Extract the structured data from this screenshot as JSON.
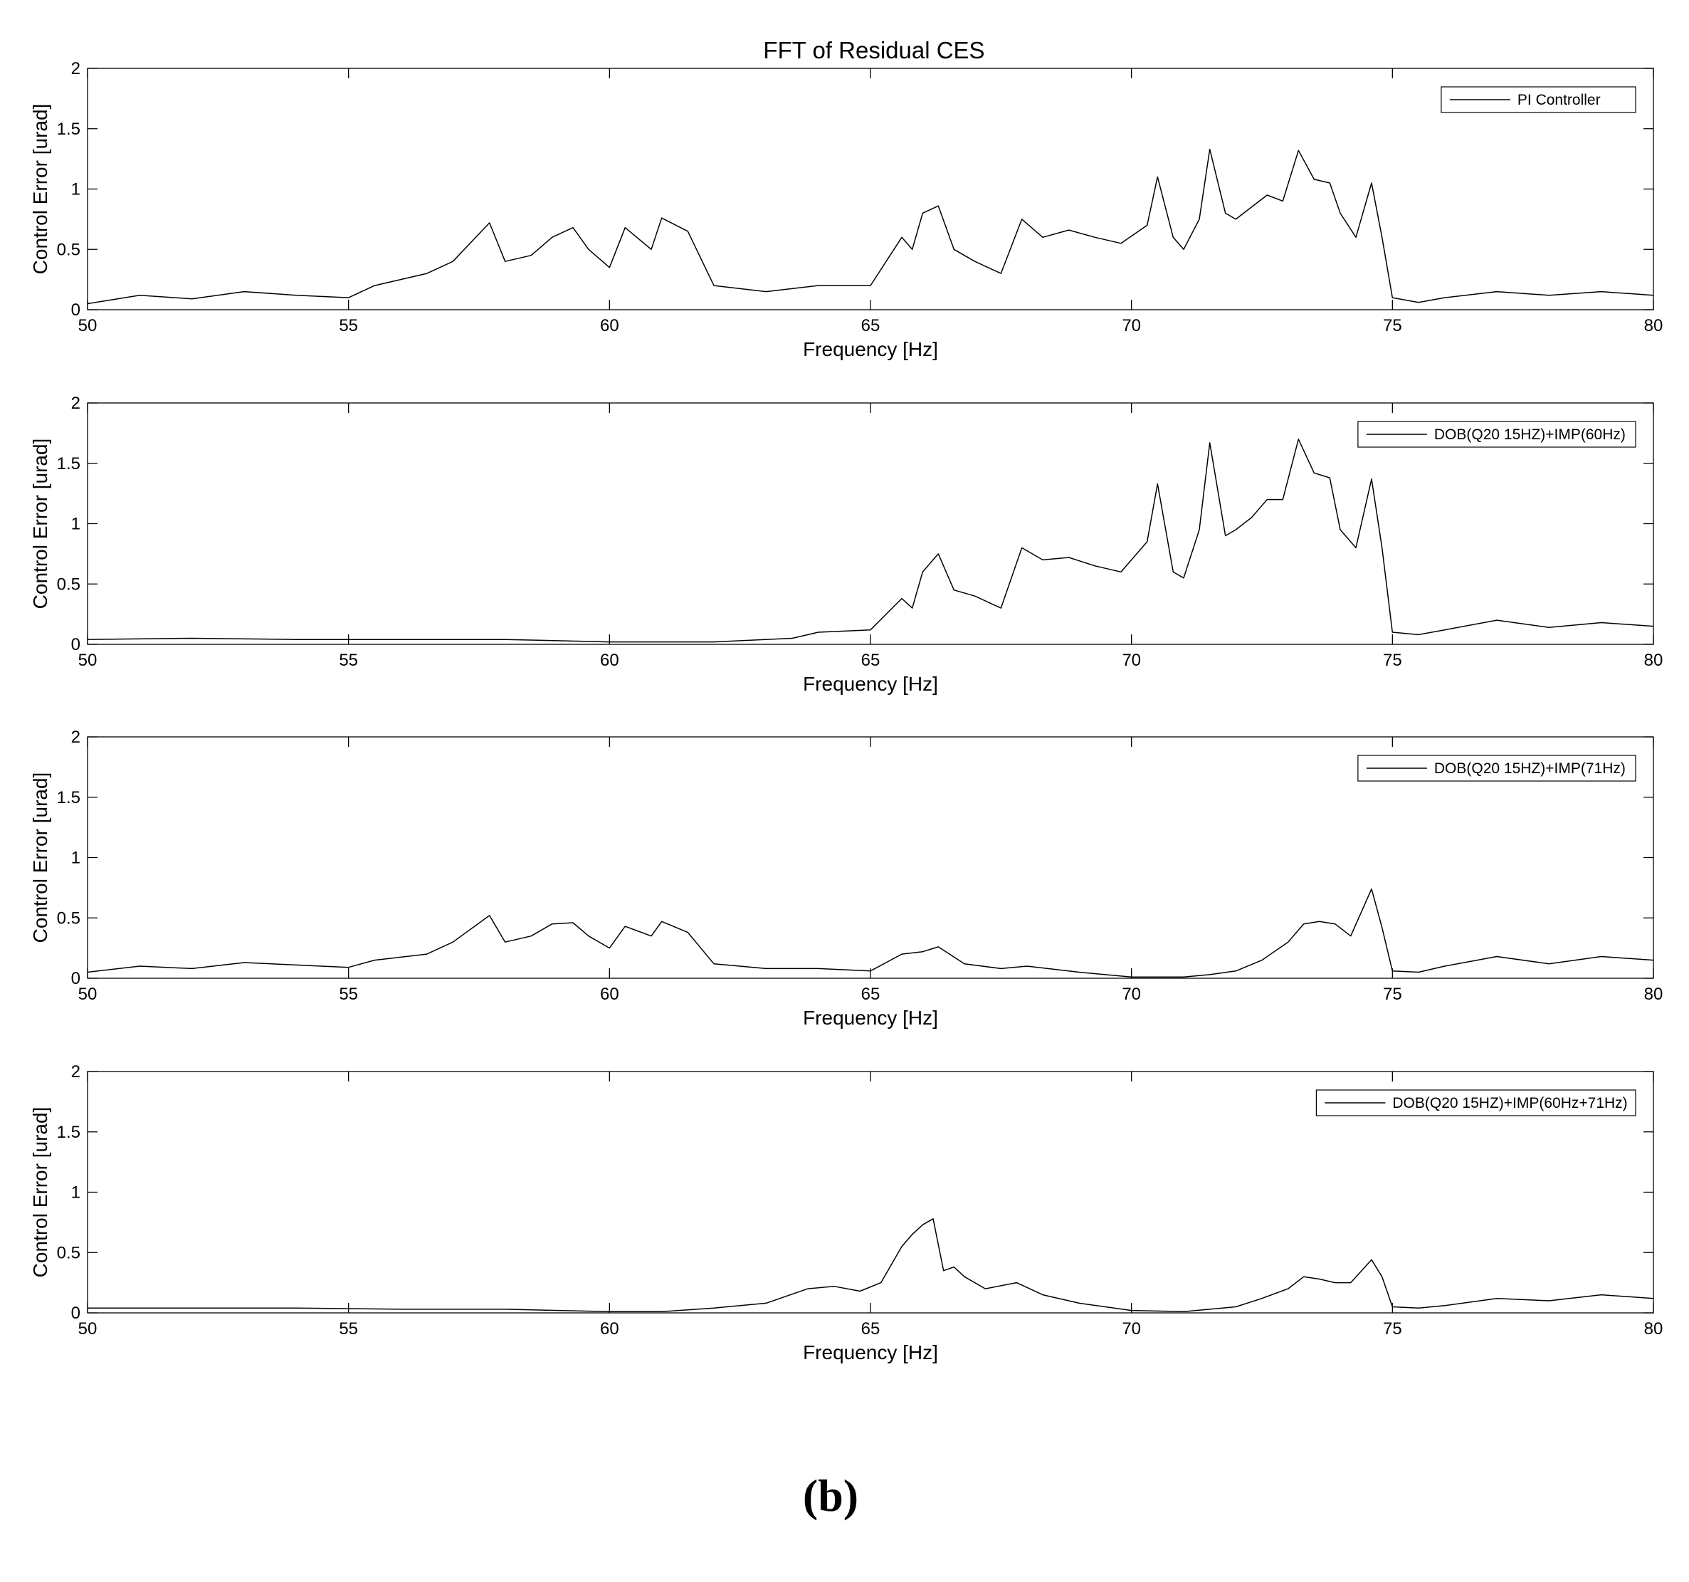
{
  "figure": {
    "title": "FFT of Residual CES",
    "panel_label": "(b)"
  },
  "chart_data": [
    {
      "type": "line",
      "xlabel": "Frequency [Hz]",
      "ylabel": "Control Error [urad]",
      "xlim": [
        50,
        80
      ],
      "ylim": [
        0,
        2
      ],
      "xticks": [
        50,
        55,
        60,
        65,
        70,
        75,
        80
      ],
      "yticks": [
        0,
        0.5,
        1,
        1.5,
        2
      ],
      "grid": false,
      "legend_position": "top-right",
      "series": [
        {
          "name": "PI Controller",
          "color": "#000000",
          "x": [
            50,
            51,
            52,
            53,
            54,
            55,
            55.5,
            56.5,
            57,
            57.7,
            58,
            58.5,
            58.9,
            59.3,
            59.6,
            60,
            60.3,
            60.8,
            61,
            61.5,
            62,
            63,
            64,
            65,
            65.6,
            65.8,
            66,
            66.3,
            66.6,
            67,
            67.5,
            67.9,
            68.3,
            68.8,
            69.3,
            69.8,
            70.3,
            70.5,
            70.8,
            71,
            71.3,
            71.5,
            71.8,
            72,
            72.3,
            72.6,
            72.9,
            73.2,
            73.5,
            73.8,
            74,
            74.3,
            74.6,
            74.8,
            75,
            75.5,
            76,
            77,
            78,
            79,
            80
          ],
          "y": [
            0.05,
            0.12,
            0.09,
            0.15,
            0.12,
            0.1,
            0.2,
            0.3,
            0.4,
            0.72,
            0.4,
            0.45,
            0.6,
            0.68,
            0.5,
            0.35,
            0.68,
            0.5,
            0.76,
            0.65,
            0.2,
            0.15,
            0.2,
            0.2,
            0.6,
            0.5,
            0.8,
            0.86,
            0.5,
            0.4,
            0.3,
            0.75,
            0.6,
            0.66,
            0.6,
            0.55,
            0.7,
            1.1,
            0.6,
            0.5,
            0.75,
            1.33,
            0.8,
            0.75,
            0.85,
            0.95,
            0.9,
            1.32,
            1.08,
            1.05,
            0.8,
            0.6,
            1.05,
            0.6,
            0.1,
            0.06,
            0.1,
            0.15,
            0.12,
            0.15,
            0.12
          ]
        }
      ]
    },
    {
      "type": "line",
      "xlabel": "Frequency [Hz]",
      "ylabel": "Control Error [urad]",
      "xlim": [
        50,
        80
      ],
      "ylim": [
        0,
        2
      ],
      "xticks": [
        50,
        55,
        60,
        65,
        70,
        75,
        80
      ],
      "yticks": [
        0,
        0.5,
        1,
        1.5,
        2
      ],
      "grid": false,
      "legend_position": "top-right",
      "series": [
        {
          "name": "DOB(Q20 15HZ)+IMP(60Hz)",
          "color": "#000000",
          "x": [
            50,
            52,
            54,
            56,
            58,
            60,
            62,
            63.5,
            64,
            65,
            65.6,
            65.8,
            66,
            66.3,
            66.6,
            67,
            67.5,
            67.9,
            68.3,
            68.8,
            69.3,
            69.8,
            70.3,
            70.5,
            70.8,
            71,
            71.3,
            71.5,
            71.8,
            72,
            72.3,
            72.6,
            72.9,
            73.2,
            73.5,
            73.8,
            74,
            74.3,
            74.6,
            74.8,
            75,
            75.5,
            76,
            77,
            78,
            79,
            80
          ],
          "y": [
            0.04,
            0.05,
            0.04,
            0.04,
            0.04,
            0.02,
            0.02,
            0.05,
            0.1,
            0.12,
            0.38,
            0.3,
            0.6,
            0.75,
            0.45,
            0.4,
            0.3,
            0.8,
            0.7,
            0.72,
            0.65,
            0.6,
            0.85,
            1.33,
            0.6,
            0.55,
            0.95,
            1.67,
            0.9,
            0.95,
            1.05,
            1.2,
            1.2,
            1.7,
            1.42,
            1.38,
            0.95,
            0.8,
            1.37,
            0.8,
            0.1,
            0.08,
            0.12,
            0.2,
            0.14,
            0.18,
            0.15
          ]
        }
      ]
    },
    {
      "type": "line",
      "xlabel": "Frequency [Hz]",
      "ylabel": "Control Error [urad]",
      "xlim": [
        50,
        80
      ],
      "ylim": [
        0,
        2
      ],
      "xticks": [
        50,
        55,
        60,
        65,
        70,
        75,
        80
      ],
      "yticks": [
        0,
        0.5,
        1,
        1.5,
        2
      ],
      "grid": false,
      "legend_position": "top-right",
      "series": [
        {
          "name": "DOB(Q20 15HZ)+IMP(71Hz)",
          "color": "#000000",
          "x": [
            50,
            51,
            52,
            53,
            54,
            55,
            55.5,
            56.5,
            57,
            57.7,
            58,
            58.5,
            58.9,
            59.3,
            59.6,
            60,
            60.3,
            60.8,
            61,
            61.5,
            62,
            63,
            64,
            65,
            65.6,
            66,
            66.3,
            66.8,
            67.5,
            68,
            69,
            70,
            71,
            71.5,
            72,
            72.5,
            73,
            73.3,
            73.6,
            73.9,
            74.2,
            74.6,
            74.8,
            75,
            75.5,
            76,
            77,
            78,
            79,
            80
          ],
          "y": [
            0.05,
            0.1,
            0.08,
            0.13,
            0.11,
            0.09,
            0.15,
            0.2,
            0.3,
            0.52,
            0.3,
            0.35,
            0.45,
            0.46,
            0.35,
            0.25,
            0.43,
            0.35,
            0.47,
            0.38,
            0.12,
            0.08,
            0.08,
            0.06,
            0.2,
            0.22,
            0.26,
            0.12,
            0.08,
            0.1,
            0.05,
            0.01,
            0.01,
            0.03,
            0.06,
            0.15,
            0.3,
            0.45,
            0.47,
            0.45,
            0.35,
            0.74,
            0.42,
            0.06,
            0.05,
            0.1,
            0.18,
            0.12,
            0.18,
            0.15
          ]
        }
      ]
    },
    {
      "type": "line",
      "xlabel": "Frequency [Hz]",
      "ylabel": "Control Error [urad]",
      "xlim": [
        50,
        80
      ],
      "ylim": [
        0,
        2
      ],
      "xticks": [
        50,
        55,
        60,
        65,
        70,
        75,
        80
      ],
      "yticks": [
        0,
        0.5,
        1,
        1.5,
        2
      ],
      "grid": false,
      "legend_position": "top-right",
      "series": [
        {
          "name": "DOB(Q20 15HZ)+IMP(60Hz+71Hz)",
          "color": "#000000",
          "x": [
            50,
            52,
            54,
            56,
            58,
            60,
            61,
            62,
            63,
            63.8,
            64.3,
            64.8,
            65.2,
            65.6,
            65.8,
            66,
            66.2,
            66.4,
            66.6,
            66.8,
            67.2,
            67.8,
            68.3,
            69,
            70,
            71,
            72,
            72.5,
            73,
            73.3,
            73.6,
            73.9,
            74.2,
            74.6,
            74.8,
            75,
            75.5,
            76,
            77,
            78,
            79,
            80
          ],
          "y": [
            0.04,
            0.04,
            0.04,
            0.03,
            0.03,
            0.01,
            0.01,
            0.04,
            0.08,
            0.2,
            0.22,
            0.18,
            0.25,
            0.55,
            0.65,
            0.73,
            0.78,
            0.35,
            0.38,
            0.3,
            0.2,
            0.25,
            0.15,
            0.08,
            0.02,
            0.01,
            0.05,
            0.12,
            0.2,
            0.3,
            0.28,
            0.25,
            0.25,
            0.44,
            0.3,
            0.05,
            0.04,
            0.06,
            0.12,
            0.1,
            0.15,
            0.12
          ]
        }
      ]
    }
  ]
}
